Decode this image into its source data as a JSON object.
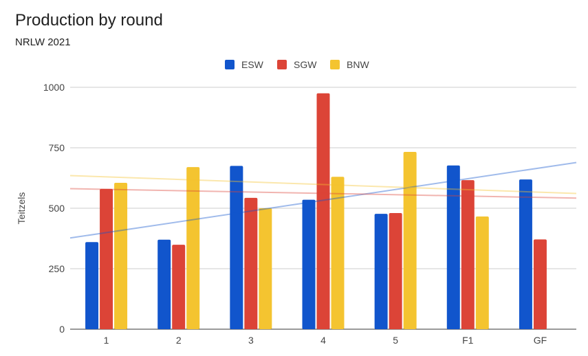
{
  "chart_data": {
    "type": "bar",
    "title": "Production by round",
    "subtitle": "NRLW 2021",
    "xlabel": "",
    "ylabel": "Teitzels",
    "ylim": [
      0,
      1000
    ],
    "yticks": [
      0,
      250,
      500,
      750,
      1000
    ],
    "grid": true,
    "legend_position": "top",
    "categories": [
      "1",
      "2",
      "3",
      "4",
      "5",
      "F1",
      "GF"
    ],
    "series": [
      {
        "name": "ESW",
        "color": "#1155cc",
        "values": [
          360,
          370,
          675,
          535,
          477,
          677,
          619
        ]
      },
      {
        "name": "SGW",
        "color": "#dc4437",
        "values": [
          580,
          349,
          543,
          975,
          480,
          616,
          371
        ]
      },
      {
        "name": "BNW",
        "color": "#f4c430",
        "values": [
          605,
          670,
          500,
          630,
          733,
          466,
          null
        ]
      }
    ],
    "trendlines": [
      {
        "series": "ESW",
        "type": "linear",
        "start": 377,
        "end": 689
      },
      {
        "series": "SGW",
        "type": "linear",
        "start": 581,
        "end": 542
      },
      {
        "series": "BNW",
        "type": "linear",
        "start": 635,
        "end": 561
      }
    ]
  }
}
